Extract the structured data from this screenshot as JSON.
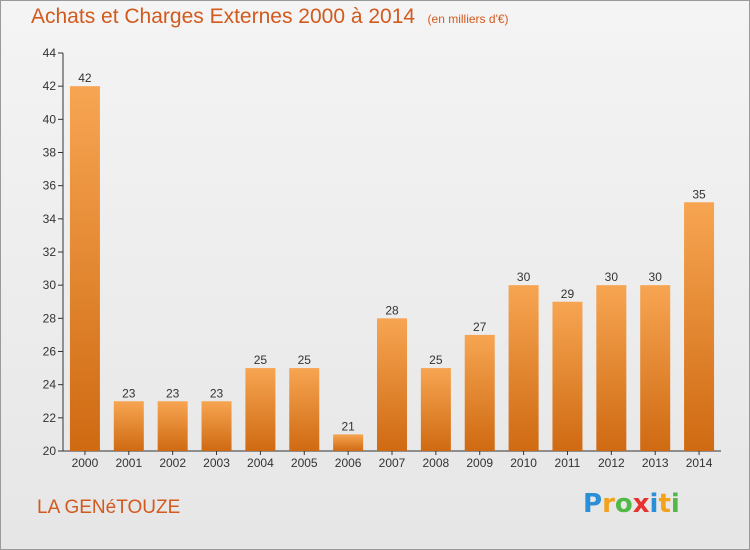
{
  "title": "Achats et Charges Externes 2000 à 2014",
  "subtitle": "(en milliers d'€)",
  "location": "LA GENéTOUZE",
  "logo": {
    "letters": [
      "P",
      "r",
      "o",
      "x",
      "i",
      "t",
      "i"
    ],
    "colors": [
      "#2a8fd6",
      "#f2a21b",
      "#52b947",
      "#e8322e",
      "#2a8fd6",
      "#f2a21b",
      "#52b947"
    ]
  },
  "colors": {
    "bar_light": "#f7a552",
    "bar_dark": "#cf6a12",
    "title": "#d25a1e",
    "axis": "#333333"
  },
  "chart_data": {
    "type": "bar",
    "title": "Achats et Charges Externes 2000 à 2014",
    "subtitle": "(en milliers d'€)",
    "xlabel": "",
    "ylabel": "",
    "categories": [
      "2000",
      "2001",
      "2002",
      "2003",
      "2004",
      "2005",
      "2006",
      "2007",
      "2008",
      "2009",
      "2010",
      "2011",
      "2012",
      "2013",
      "2014"
    ],
    "values": [
      42,
      23,
      23,
      23,
      25,
      25,
      21,
      28,
      25,
      27,
      30,
      29,
      30,
      30,
      35
    ],
    "ylim": [
      20,
      44
    ],
    "yticks": [
      20,
      22,
      24,
      26,
      28,
      30,
      32,
      34,
      36,
      38,
      40,
      42,
      44
    ],
    "grid": false,
    "data_labels": true
  }
}
